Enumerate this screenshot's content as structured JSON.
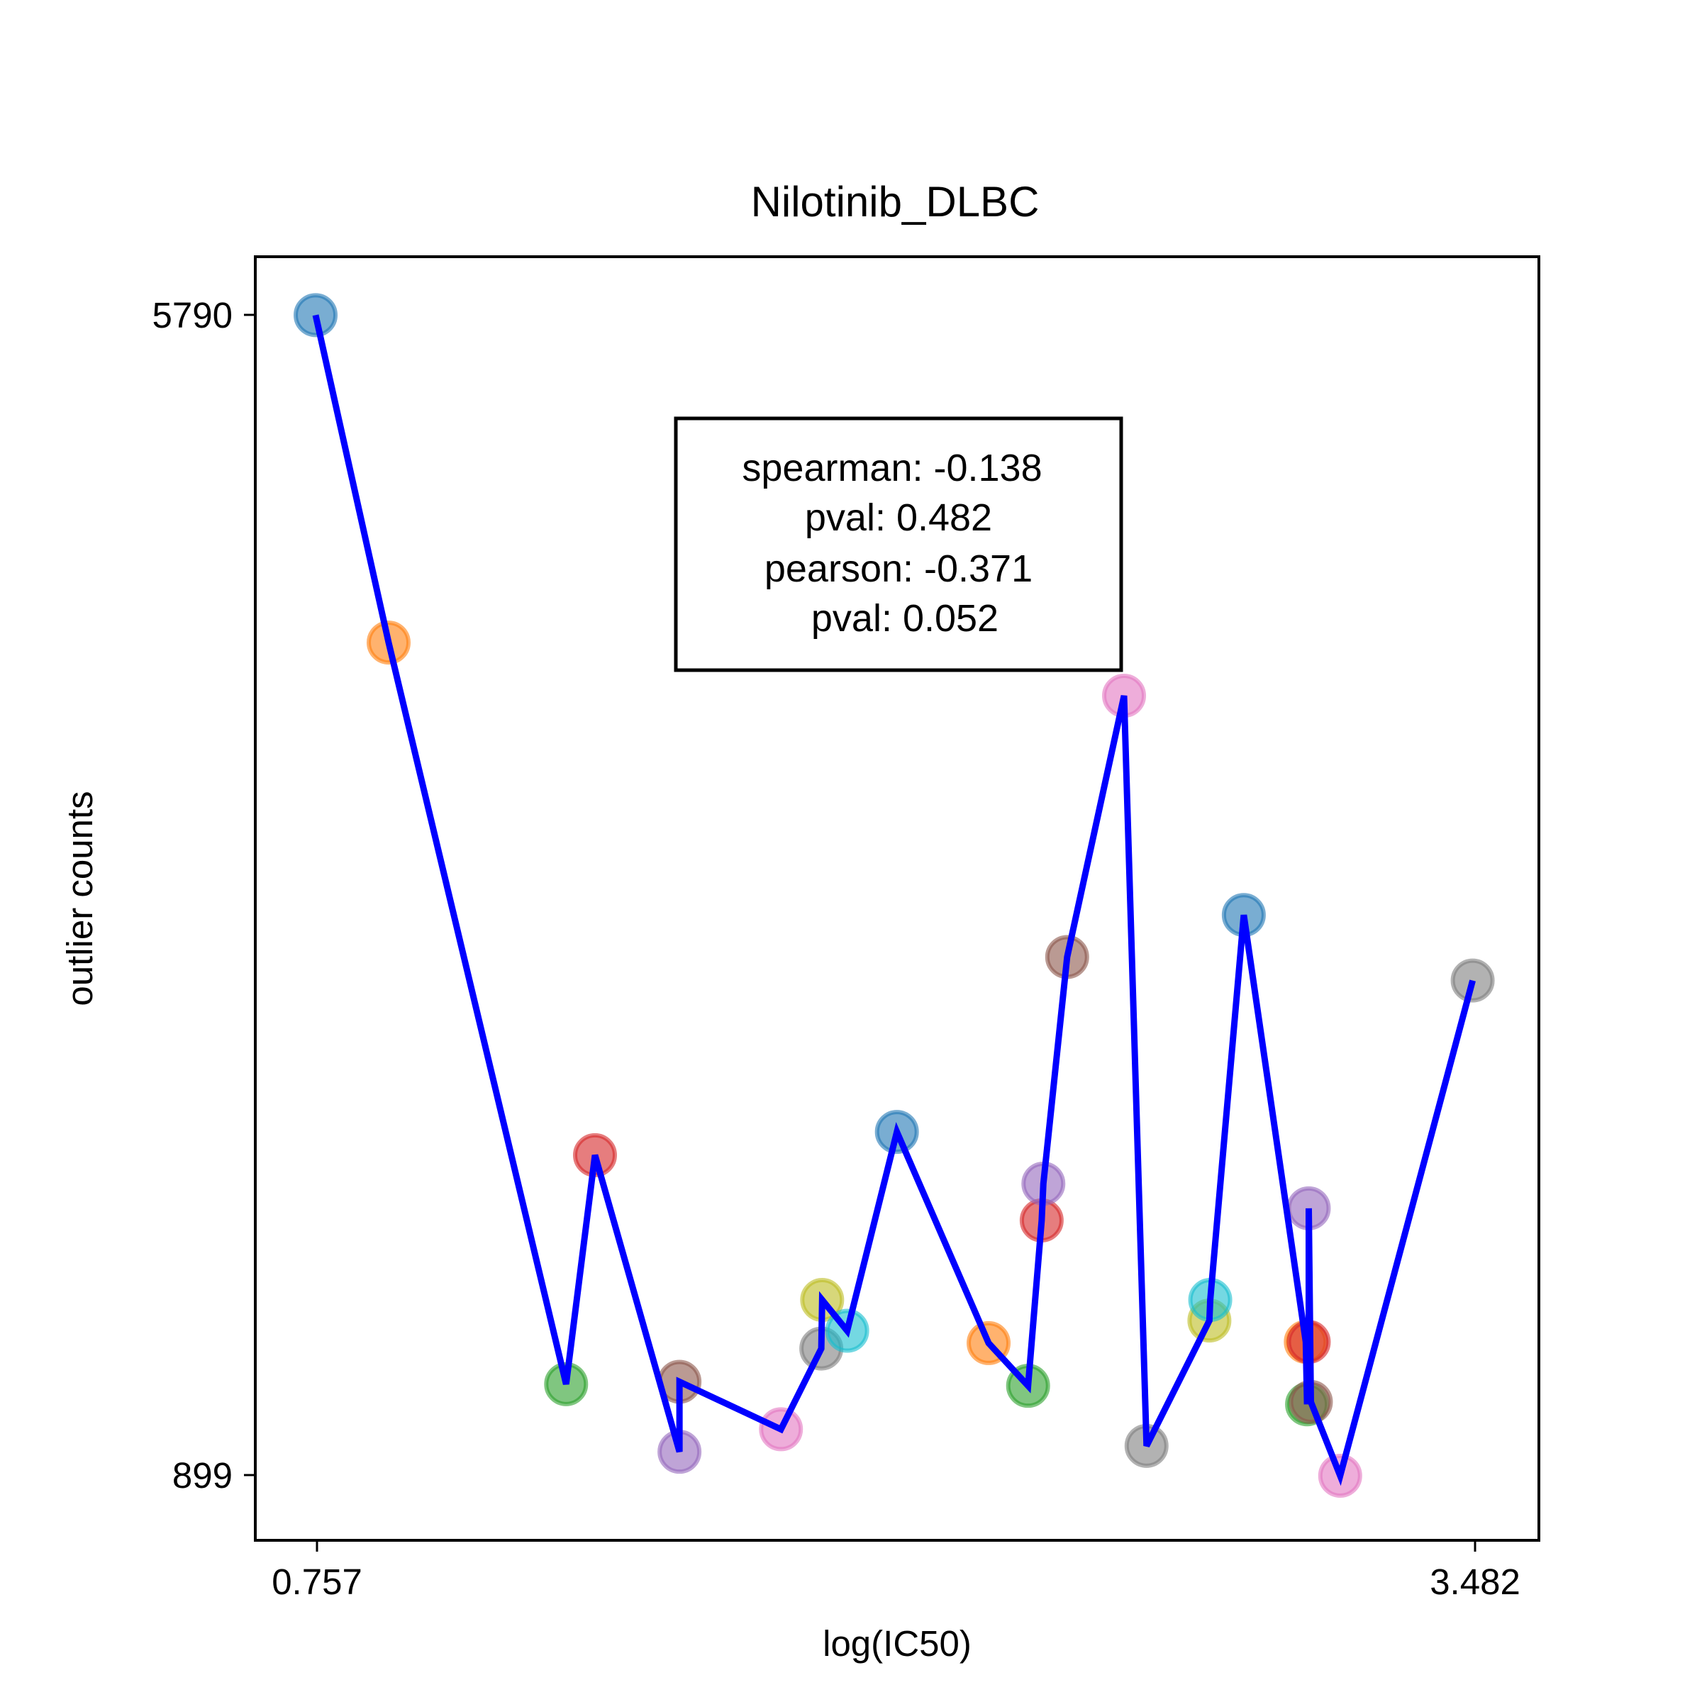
{
  "chart_data": {
    "type": "scatter",
    "title": "Nilotinib_DLBC",
    "xlabel": "log(IC50)",
    "ylabel": "outlier counts",
    "x_ticks": [
      "0.757",
      "3.482"
    ],
    "y_ticks": [
      "5790",
      "899"
    ],
    "xlim": [
      0.615,
      3.638
    ],
    "ylim": [
      627,
      6036
    ],
    "grid": false,
    "line_color": "#0000ff",
    "stats_box": {
      "line1": "spearman: -0.138",
      "line2": "pval: 0.482",
      "line3": "pearson: -0.371",
      "line4": "pval: 0.052"
    },
    "points": [
      {
        "x": 0.757,
        "y": 5790,
        "color": "#1f77b4"
      },
      {
        "x": 0.929,
        "y": 4410,
        "color": "#ff7f0e"
      },
      {
        "x": 1.347,
        "y": 1285,
        "color": "#2ca02c"
      },
      {
        "x": 1.415,
        "y": 2250,
        "color": "#d62728"
      },
      {
        "x": 1.614,
        "y": 1000,
        "color": "#9467bd"
      },
      {
        "x": 1.614,
        "y": 1295,
        "color": "#8c564b"
      },
      {
        "x": 1.853,
        "y": 1095,
        "color": "#e377c2"
      },
      {
        "x": 1.948,
        "y": 1435,
        "color": "#7f7f7f"
      },
      {
        "x": 1.95,
        "y": 1640,
        "color": "#bcbd22"
      },
      {
        "x": 2.009,
        "y": 1510,
        "color": "#17becf"
      },
      {
        "x": 2.126,
        "y": 2348,
        "color": "#1f77b4"
      },
      {
        "x": 2.342,
        "y": 1458,
        "color": "#ff7f0e"
      },
      {
        "x": 2.435,
        "y": 1278,
        "color": "#2ca02c"
      },
      {
        "x": 2.467,
        "y": 1975,
        "color": "#d62728"
      },
      {
        "x": 2.471,
        "y": 2130,
        "color": "#9467bd"
      },
      {
        "x": 2.527,
        "y": 3085,
        "color": "#8c564b"
      },
      {
        "x": 2.661,
        "y": 4186,
        "color": "#e377c2"
      },
      {
        "x": 2.714,
        "y": 1025,
        "color": "#7f7f7f"
      },
      {
        "x": 2.862,
        "y": 1553,
        "color": "#bcbd22"
      },
      {
        "x": 2.864,
        "y": 1640,
        "color": "#17becf"
      },
      {
        "x": 2.943,
        "y": 3262,
        "color": "#1f77b4"
      },
      {
        "x": 3.089,
        "y": 1463,
        "color": "#ff7f0e"
      },
      {
        "x": 3.092,
        "y": 1200,
        "color": "#2ca02c"
      },
      {
        "x": 3.096,
        "y": 1463,
        "color": "#d62728"
      },
      {
        "x": 3.096,
        "y": 2026,
        "color": "#9467bd"
      },
      {
        "x": 3.101,
        "y": 1210,
        "color": "#8c564b"
      },
      {
        "x": 3.17,
        "y": 899,
        "color": "#e377c2"
      },
      {
        "x": 3.482,
        "y": 2986,
        "color": "#7f7f7f"
      }
    ]
  }
}
